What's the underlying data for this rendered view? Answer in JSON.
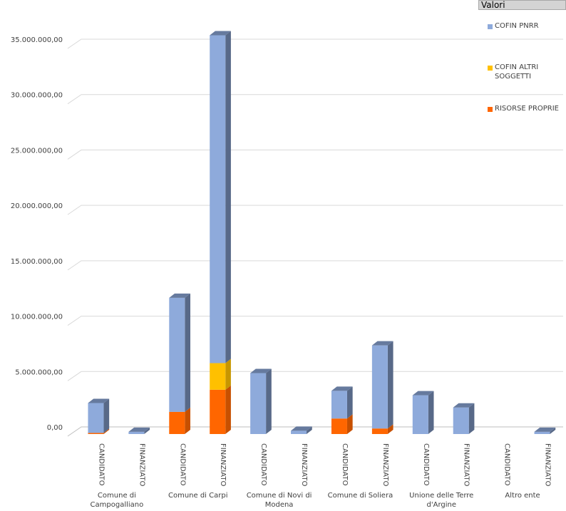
{
  "field_button": {
    "label": "Valori"
  },
  "chart_data": {
    "type": "bar",
    "stacked": true,
    "three_d": true,
    "groups": [
      {
        "label": "Comune di Campogalliano",
        "categories": [
          "CANDIDATO",
          "FINANZIATO"
        ]
      },
      {
        "label": "Comune di Carpi",
        "categories": [
          "CANDIDATO",
          "FINANZIATO"
        ]
      },
      {
        "label": "Comune di Novi di Modena",
        "categories": [
          "CANDIDATO",
          "FINANZIATO"
        ]
      },
      {
        "label": "Comune di Soliera",
        "categories": [
          "CANDIDATO",
          "FINANZIATO"
        ]
      },
      {
        "label": "Unione delle Terre d'Argine",
        "categories": [
          "CANDIDATO",
          "FINANZIATO"
        ]
      },
      {
        "label": "Altro ente",
        "categories": [
          "CANDIDATO",
          "FINANZIATO"
        ]
      }
    ],
    "series": [
      {
        "name": "RISORSE PROPRIE",
        "color": "#ff6600",
        "values": [
          100000,
          0,
          2000000,
          4000000,
          0,
          0,
          1400000,
          500000,
          0,
          0,
          0,
          0
        ]
      },
      {
        "name": "COFIN ALTRI SOGGETTI",
        "color": "#ffc000",
        "values": [
          0,
          0,
          0,
          2400000,
          0,
          0,
          0,
          0,
          0,
          0,
          0,
          0
        ]
      },
      {
        "name": "COFIN PNRR",
        "color": "#8eaadb",
        "values": [
          2700000,
          200000,
          10300000,
          29600000,
          5500000,
          300000,
          2500000,
          7500000,
          3500000,
          2400000,
          0,
          200000
        ]
      }
    ],
    "legend_order": [
      "COFIN PNRR",
      "COFIN ALTRI SOGGETTI",
      "RISORSE PROPRIE"
    ],
    "legend_placement": "right",
    "ylim": [
      0,
      35000000
    ],
    "yticks": [
      {
        "value": 0,
        "label": "0,00"
      },
      {
        "value": 5000000,
        "label": "5.000.000,00"
      },
      {
        "value": 10000000,
        "label": "10.000.000,00"
      },
      {
        "value": 15000000,
        "label": "15.000.000,00"
      },
      {
        "value": 20000000,
        "label": "20.000.000,00"
      },
      {
        "value": 25000000,
        "label": "25.000.000,00"
      },
      {
        "value": 30000000,
        "label": "30.000.000,00"
      },
      {
        "value": 35000000,
        "label": "35.000.000,00"
      }
    ],
    "grid": true,
    "title": "",
    "xlabel": "",
    "ylabel": ""
  }
}
